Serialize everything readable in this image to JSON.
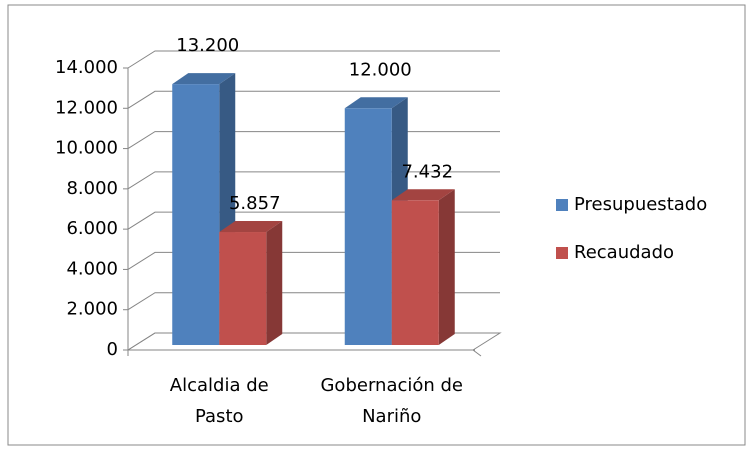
{
  "chart_data": {
    "type": "bar3d",
    "categories": [
      "Alcaldia de Pasto",
      "Gobernación de Nariño"
    ],
    "series": [
      {
        "name": "Presupuestado",
        "color": "#4f81bd",
        "values": [
          13200,
          12000
        ],
        "value_labels": [
          "13.200",
          "12.000"
        ]
      },
      {
        "name": "Recaudado",
        "color": "#c0504d",
        "values": [
          5857,
          7432
        ],
        "value_labels": [
          "5.857",
          "7.432"
        ]
      }
    ],
    "ylim": [
      0,
      14000
    ],
    "yticks": [
      0,
      {
        "value": 2000,
        "label": "2.000"
      },
      {
        "value": 4000,
        "label": "4.000"
      },
      {
        "value": 6000,
        "label": "6.000"
      },
      {
        "value": 8000,
        "label": "8.000"
      },
      {
        "value": 10000,
        "label": "10.000"
      },
      {
        "value": 12000,
        "label": "12.000"
      },
      {
        "value": 14000,
        "label": "14.000"
      }
    ],
    "grid": true,
    "legend": "right"
  }
}
